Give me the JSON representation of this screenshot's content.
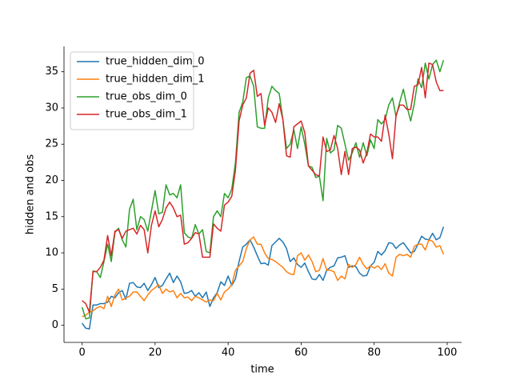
{
  "chart_data": {
    "type": "line",
    "xlabel": "time",
    "ylabel": "hidden and obs",
    "x": [
      0,
      1,
      2,
      3,
      4,
      5,
      6,
      7,
      8,
      9,
      10,
      11,
      12,
      13,
      14,
      15,
      16,
      17,
      18,
      19,
      20,
      21,
      22,
      23,
      24,
      25,
      26,
      27,
      28,
      29,
      30,
      31,
      32,
      33,
      34,
      35,
      36,
      37,
      38,
      39,
      40,
      41,
      42,
      43,
      44,
      45,
      46,
      47,
      48,
      49,
      50,
      51,
      52,
      53,
      54,
      55,
      56,
      57,
      58,
      59,
      60,
      61,
      62,
      63,
      64,
      65,
      66,
      67,
      68,
      69,
      70,
      71,
      72,
      73,
      74,
      75,
      76,
      77,
      78,
      79,
      80,
      81,
      82,
      83,
      84,
      85,
      86,
      87,
      88,
      89,
      90,
      91,
      92,
      93,
      94,
      95,
      96,
      97,
      98,
      99
    ],
    "series": [
      {
        "name": "true_hidden_dim_0",
        "color": "#1f77b4",
        "values": [
          0.3,
          -0.4,
          -0.5,
          2.8,
          2.8,
          3.0,
          3.0,
          3.2,
          4.0,
          3.8,
          4.5,
          4.8,
          3.6,
          5.8,
          5.9,
          5.3,
          5.2,
          5.8,
          4.8,
          5.6,
          6.6,
          5.2,
          5.5,
          6.4,
          7.2,
          5.9,
          6.8,
          6.0,
          4.4,
          4.5,
          4.8,
          4.0,
          4.5,
          3.8,
          4.6,
          2.6,
          3.8,
          4.5,
          6.0,
          5.5,
          6.8,
          5.5,
          6.4,
          8.8,
          10.8,
          11.2,
          11.8,
          10.8,
          9.6,
          8.5,
          8.6,
          8.3,
          11.0,
          11.5,
          12.0,
          11.5,
          10.6,
          8.8,
          9.3,
          8.4,
          8.0,
          8.6,
          7.4,
          6.4,
          6.3,
          7.0,
          6.2,
          7.6,
          8.0,
          8.2,
          9.3,
          9.4,
          9.6,
          8.0,
          8.2,
          8.1,
          7.2,
          6.8,
          6.9,
          8.2,
          8.7,
          10.2,
          9.7,
          10.3,
          11.4,
          11.3,
          10.6,
          11.1,
          11.4,
          10.7,
          10.0,
          10.2,
          11.2,
          12.3,
          11.9,
          11.8,
          12.7,
          11.8,
          12.1,
          13.6
        ]
      },
      {
        "name": "true_hidden_dim_1",
        "color": "#ff7f0e",
        "values": [
          1.2,
          1.4,
          1.8,
          2.0,
          2.4,
          2.6,
          2.3,
          4.0,
          2.6,
          4.2,
          5.0,
          3.5,
          3.8,
          4.0,
          4.6,
          4.6,
          4.0,
          3.4,
          4.2,
          4.8,
          5.2,
          5.6,
          4.4,
          5.0,
          4.6,
          4.8,
          3.8,
          4.4,
          3.8,
          3.9,
          3.4,
          4.0,
          3.8,
          3.5,
          3.2,
          3.5,
          3.4,
          4.4,
          3.5,
          4.6,
          5.0,
          5.6,
          7.6,
          8.2,
          8.8,
          10.6,
          11.8,
          12.2,
          11.2,
          11.2,
          10.0,
          9.2,
          9.1,
          8.8,
          8.4,
          8.0,
          7.4,
          7.1,
          7.0,
          9.6,
          10.0,
          9.0,
          9.7,
          8.8,
          7.4,
          7.6,
          9.2,
          7.6,
          7.6,
          7.4,
          6.2,
          6.8,
          6.4,
          8.4,
          8.0,
          8.4,
          9.4,
          8.4,
          7.8,
          8.2,
          7.9,
          8.2,
          7.7,
          8.5,
          7.2,
          6.8,
          9.4,
          9.8,
          9.6,
          9.8,
          9.4,
          10.9,
          11.2,
          11.2,
          10.4,
          11.8,
          11.6,
          10.8,
          11.0,
          9.8
        ]
      },
      {
        "name": "true_obs_dim_0",
        "color": "#2ca02c",
        "values": [
          2.5,
          0.9,
          1.0,
          7.5,
          7.4,
          6.6,
          8.8,
          11.2,
          8.8,
          12.8,
          13.4,
          11.8,
          10.8,
          16.0,
          17.4,
          13.2,
          15.0,
          14.6,
          13.0,
          15.8,
          18.6,
          15.4,
          15.6,
          19.4,
          18.0,
          18.2,
          17.6,
          19.4,
          12.8,
          12.2,
          12.0,
          13.9,
          12.6,
          13.2,
          10.2,
          10.0,
          15.0,
          15.8,
          15.0,
          18.2,
          17.6,
          18.8,
          22.4,
          29.4,
          30.8,
          34.2,
          34.4,
          33.0,
          27.4,
          27.2,
          27.2,
          31.4,
          33.0,
          32.4,
          32.0,
          28.4,
          24.4,
          25.0,
          27.0,
          24.4,
          27.4,
          25.0,
          22.0,
          21.8,
          20.4,
          20.6,
          17.2,
          25.8,
          23.8,
          24.2,
          27.6,
          27.2,
          25.0,
          22.8,
          23.8,
          25.2,
          23.2,
          25.2,
          23.4,
          25.6,
          24.4,
          28.4,
          27.8,
          28.4,
          30.4,
          31.4,
          28.8,
          30.8,
          32.6,
          30.2,
          28.2,
          30.6,
          34.0,
          32.8,
          36.2,
          34.0,
          36.0,
          36.6,
          35.0,
          36.6
        ]
      },
      {
        "name": "true_obs_dim_1",
        "color": "#d62728",
        "values": [
          3.4,
          3.0,
          1.8,
          7.4,
          7.4,
          8.0,
          9.0,
          12.4,
          9.6,
          13.0,
          13.2,
          12.0,
          13.0,
          13.2,
          13.4,
          12.6,
          13.8,
          13.2,
          10.0,
          13.8,
          15.8,
          13.6,
          14.6,
          16.2,
          17.0,
          16.2,
          15.0,
          15.2,
          11.2,
          11.4,
          12.0,
          12.8,
          12.6,
          9.4,
          9.4,
          9.4,
          14.0,
          13.4,
          13.0,
          16.6,
          17.0,
          17.8,
          21.4,
          28.2,
          30.4,
          31.4,
          34.8,
          35.2,
          31.6,
          32.0,
          27.6,
          30.0,
          29.4,
          28.0,
          30.6,
          28.4,
          23.4,
          23.2,
          27.4,
          27.8,
          28.2,
          26.6,
          22.0,
          21.4,
          20.8,
          20.6,
          26.0,
          24.0,
          24.2,
          26.2,
          24.4,
          20.8,
          24.0,
          20.8,
          24.4,
          24.6,
          24.2,
          22.4,
          23.8,
          26.4,
          26.0,
          26.0,
          25.4,
          29.0,
          26.4,
          23.0,
          29.0,
          30.4,
          30.4,
          29.8,
          29.8,
          33.0,
          33.2,
          35.6,
          31.4,
          36.2,
          36.0,
          33.6,
          32.4,
          32.4
        ]
      }
    ],
    "xlim": [
      -4.95,
      103.95
    ],
    "ylim": [
      -2.36,
      38.5
    ],
    "xticks": [
      0,
      20,
      40,
      60,
      80,
      100
    ],
    "yticks": [
      0,
      5,
      10,
      15,
      20,
      25,
      30,
      35
    ],
    "legend": "upper left"
  }
}
